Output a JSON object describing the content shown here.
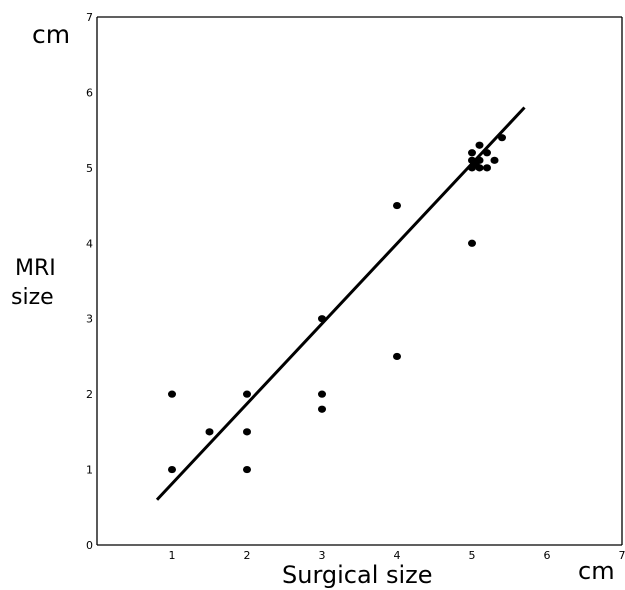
{
  "chart_data": {
    "type": "scatter",
    "title": "",
    "xlabel": "Surgical size",
    "x_unit": "cm",
    "ylabel_lines": [
      "MRI",
      "size"
    ],
    "y_unit": "cm",
    "xlim": [
      0,
      7
    ],
    "ylim": [
      0,
      7
    ],
    "x_ticks": [
      "1",
      "2",
      "3",
      "4",
      "5",
      "6",
      "7"
    ],
    "y_ticks": [
      "0",
      "1",
      "2",
      "3",
      "4",
      "5",
      "6",
      "7"
    ],
    "grid": false,
    "legend": "none",
    "points": [
      {
        "x": 1,
        "y": 1
      },
      {
        "x": 1,
        "y": 2
      },
      {
        "x": 1.5,
        "y": 1.5
      },
      {
        "x": 2,
        "y": 1
      },
      {
        "x": 2,
        "y": 1.5
      },
      {
        "x": 2,
        "y": 2
      },
      {
        "x": 3,
        "y": 1.8
      },
      {
        "x": 3,
        "y": 2
      },
      {
        "x": 3,
        "y": 3
      },
      {
        "x": 4,
        "y": 2.5
      },
      {
        "x": 4,
        "y": 4.5
      },
      {
        "x": 5,
        "y": 4
      },
      {
        "x": 5,
        "y": 5
      },
      {
        "x": 5,
        "y": 5.1
      },
      {
        "x": 5,
        "y": 5.2
      },
      {
        "x": 5.05,
        "y": 5.05
      },
      {
        "x": 5.1,
        "y": 5
      },
      {
        "x": 5.1,
        "y": 5.1
      },
      {
        "x": 5.1,
        "y": 5.3
      },
      {
        "x": 5.2,
        "y": 5
      },
      {
        "x": 5.2,
        "y": 5.2
      },
      {
        "x": 5.3,
        "y": 5.1
      },
      {
        "x": 5.4,
        "y": 5.4
      }
    ],
    "fit_line": {
      "x": [
        0.8,
        5.7
      ],
      "y": [
        0.6,
        5.8
      ]
    },
    "colors": {
      "axis": "#000000",
      "points": "#000000",
      "line": "#000000"
    }
  }
}
